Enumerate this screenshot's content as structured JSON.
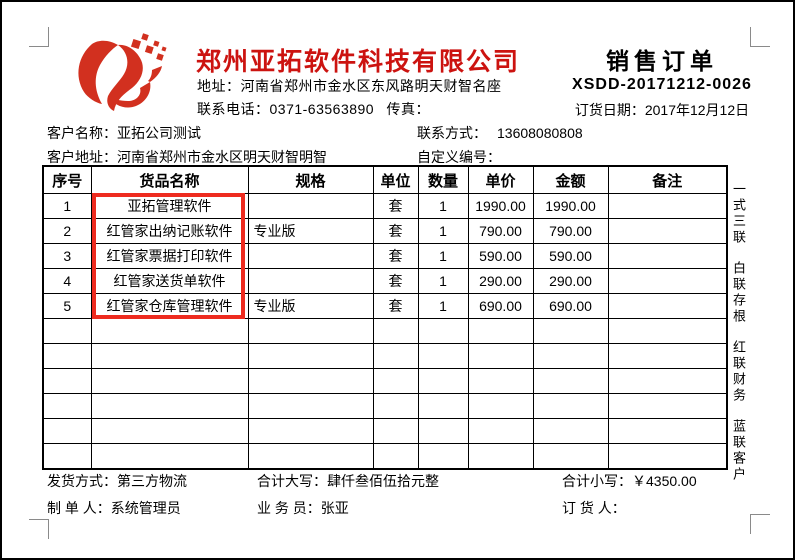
{
  "colors": {
    "accent_red": "#cc1310",
    "highlight_red": "#ee2b1f",
    "mark_gray": "#8a8a8a"
  },
  "company": {
    "name": "郑州亚拓软件科技有限公司",
    "address_label": "地址：",
    "address_value": "河南省郑州市金水区东风路明天财智名座",
    "phone_label": "联系电话：",
    "phone_value": "0371-63563890",
    "fax_label": "传真："
  },
  "order": {
    "title": "销售订单",
    "number": "XSDD-20171212-0026",
    "date_label": "订货日期：",
    "date_value": "2017年12月12日"
  },
  "customer": {
    "name_label": "客户名称：",
    "name_value": "亚拓公司测试",
    "contact_label": "联系方式：",
    "contact_value": "13608080808",
    "address_label": "客户地址：",
    "address_value": "河南省郑州市金水区明天财智明智",
    "custom_no_label": "自定义编号：",
    "custom_no_value": ""
  },
  "items_table": {
    "headers": [
      "序号",
      "货品名称",
      "规格",
      "单位",
      "数量",
      "单价",
      "金额",
      "备注"
    ],
    "rows": [
      [
        "1",
        "亚拓管理软件",
        "",
        "套",
        "1",
        "1990.00",
        "1990.00",
        ""
      ],
      [
        "2",
        "红管家出纳记账软件",
        "专业版",
        "套",
        "1",
        "790.00",
        "790.00",
        ""
      ],
      [
        "3",
        "红管家票据打印软件",
        "",
        "套",
        "1",
        "590.00",
        "590.00",
        ""
      ],
      [
        "4",
        "红管家送货单软件",
        "",
        "套",
        "1",
        "290.00",
        "290.00",
        ""
      ],
      [
        "5",
        "红管家仓库管理软件",
        "专业版",
        "套",
        "1",
        "690.00",
        "690.00",
        ""
      ],
      [
        "",
        "",
        "",
        "",
        "",
        "",
        "",
        ""
      ],
      [
        "",
        "",
        "",
        "",
        "",
        "",
        "",
        ""
      ],
      [
        "",
        "",
        "",
        "",
        "",
        "",
        "",
        ""
      ],
      [
        "",
        "",
        "",
        "",
        "",
        "",
        "",
        ""
      ],
      [
        "",
        "",
        "",
        "",
        "",
        "",
        "",
        ""
      ],
      [
        "",
        "",
        "",
        "",
        "",
        "",
        "",
        ""
      ]
    ]
  },
  "copies_note": {
    "groups": [
      "一式三联",
      "白联存根",
      "红联财务",
      "蓝联客户"
    ]
  },
  "footer": {
    "delivery_label": "发货方式：",
    "delivery_value": "第三方物流",
    "total_caps_label": "合计大写：",
    "total_caps_value": "肆仟叁佰伍拾元整",
    "total_num_label": "合计小写：",
    "total_num_value": "￥4350.00",
    "maker_label": "制 单 人：",
    "maker_value": "系统管理员",
    "salesman_label": "业 务 员：",
    "salesman_value": "张亚",
    "orderer_label": "订 货 人：",
    "orderer_value": ""
  }
}
